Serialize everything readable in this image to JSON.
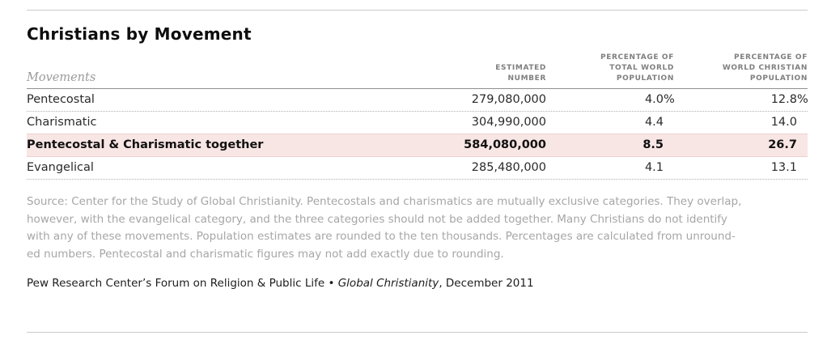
{
  "title": "Christians by Movement",
  "table": {
    "movements_label": "Movements",
    "columns": [
      {
        "name": "estimated-number",
        "lines": [
          "ESTIMATED",
          "NUMBER"
        ]
      },
      {
        "name": "pct-total-world",
        "lines": [
          "PERCENTAGE OF",
          "TOTAL WORLD",
          "POPULATION"
        ]
      },
      {
        "name": "pct-world-christian",
        "lines": [
          "PERCENTAGE OF",
          "WORLD CHRISTIAN",
          "POPULATION"
        ]
      }
    ],
    "rows": [
      {
        "movement": "Pentecostal",
        "estimated_number": "279,080,000",
        "pct_world_value": "4.0",
        "pct_world_suffix": "%",
        "pct_christian_value": "12.8",
        "pct_christian_suffix": "%"
      },
      {
        "movement": "Charismatic",
        "estimated_number": "304,990,000",
        "pct_world_value": "4.4",
        "pct_world_suffix": "",
        "pct_christian_value": "14.0",
        "pct_christian_suffix": ""
      },
      {
        "movement": "Pentecostal & Charismatic together",
        "estimated_number": "584,080,000",
        "pct_world_value": "8.5",
        "pct_world_suffix": "",
        "pct_christian_value": "26.7",
        "pct_christian_suffix": "",
        "highlighted": true
      },
      {
        "movement": "Evangelical",
        "estimated_number": "285,480,000",
        "pct_world_value": "4.1",
        "pct_world_suffix": "",
        "pct_christian_value": "13.1",
        "pct_christian_suffix": ""
      }
    ]
  },
  "source_note": {
    "lines": [
      "Source: Center for the Study of Global Christianity. Pentecostals and charismatics are mutually exclusive categories. They overlap,",
      "however, with the evangelical category, and the three categories should not be added together. Many Christians do not identify",
      "with any of these movements. Population estimates are rounded to the ten thousands. Percentages are calculated from unround-",
      "ed numbers. Pentecostal and charismatic figures may not add exactly due to rounding."
    ]
  },
  "footer": {
    "prefix": "Pew Research Center’s Forum on Religion & Public Life • ",
    "italic_title": "Global Christianity",
    "suffix": ", December 2011"
  },
  "colors": {
    "highlight_bg": "#f8e6e4",
    "highlight_border": "#ecd0cc",
    "rule": "#cbcbcb",
    "header_underline": "#8e8e8e",
    "header_text": "#7f7f7f",
    "source_text": "#a6a6a6"
  }
}
